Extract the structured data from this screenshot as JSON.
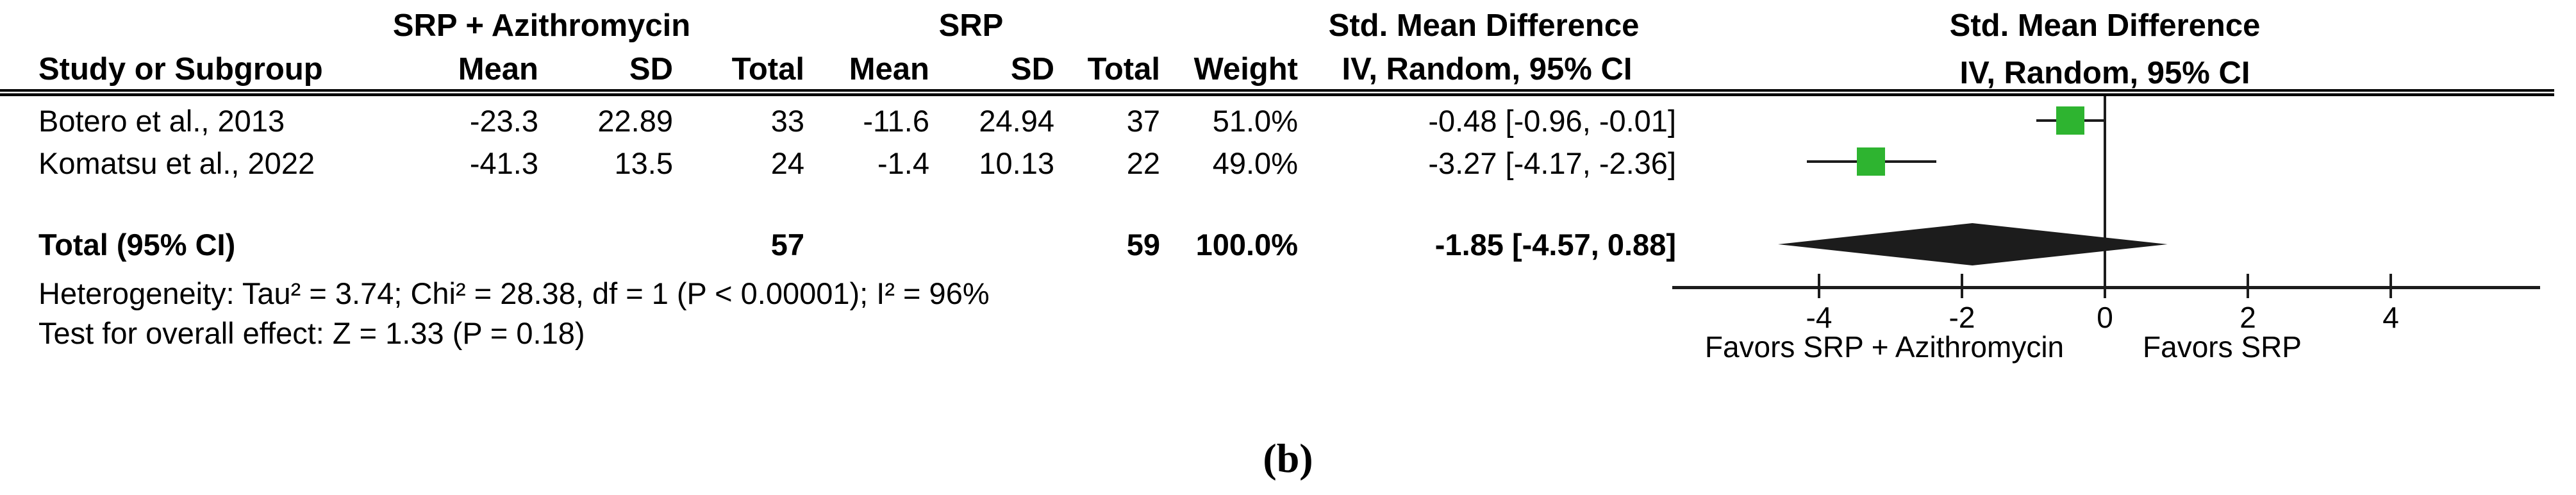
{
  "panel_label": "(b)",
  "colors": {
    "marker_green": "#2eb430",
    "line_black": "#1c1c1c"
  },
  "table": {
    "group_headers": {
      "experimental": "SRP + Azithromycin",
      "control": "SRP",
      "effect": "Std. Mean Difference",
      "plot": "Std. Mean Difference"
    },
    "columns": {
      "study": "Study or Subgroup",
      "mean1": "Mean",
      "sd1": "SD",
      "total1": "Total",
      "mean2": "Mean",
      "sd2": "SD",
      "total2": "Total",
      "weight": "Weight",
      "ci": "IV, Random, 95% CI"
    },
    "plot_subheader": "IV, Random, 95% CI",
    "rows": [
      {
        "study": "Botero et al., 2013",
        "mean1": "-23.3",
        "sd1": "22.89",
        "total1": "33",
        "mean2": "-11.6",
        "sd2": "24.94",
        "total2": "37",
        "weight": "51.0%",
        "ci": "-0.48 [-0.96, -0.01]"
      },
      {
        "study": "Komatsu et al., 2022",
        "mean1": "-41.3",
        "sd1": "13.5",
        "total1": "24",
        "mean2": "-1.4",
        "sd2": "10.13",
        "total2": "22",
        "weight": "49.0%",
        "ci": "-3.27 [-4.17, -2.36]"
      }
    ],
    "total": {
      "label": "Total (95% CI)",
      "total1": "57",
      "total2": "59",
      "weight": "100.0%",
      "ci": "-1.85 [-4.57, 0.88]"
    },
    "heterogeneity": "Heterogeneity: Tau² = 3.74; Chi² = 28.38, df = 1 (P < 0.00001); I² = 96%",
    "overall_effect": "Test for overall effect: Z = 1.33 (P = 0.18)"
  },
  "chart_data": {
    "type": "forest",
    "effect_measure": "Std. Mean Difference",
    "model": "IV, Random, 95% CI",
    "studies": [
      {
        "label": "Botero et al., 2013",
        "smd": -0.48,
        "ci_low": -0.96,
        "ci_high": -0.01,
        "weight_pct": 51.0,
        "experimental": {
          "mean": -23.3,
          "sd": 22.89,
          "n": 33
        },
        "control": {
          "mean": -11.6,
          "sd": 24.94,
          "n": 37
        }
      },
      {
        "label": "Komatsu et al., 2022",
        "smd": -3.27,
        "ci_low": -4.17,
        "ci_high": -2.36,
        "weight_pct": 49.0,
        "experimental": {
          "mean": -41.3,
          "sd": 13.5,
          "n": 24
        },
        "control": {
          "mean": -1.4,
          "sd": 10.13,
          "n": 22
        }
      }
    ],
    "total": {
      "smd": -1.85,
      "ci_low": -4.57,
      "ci_high": 0.88,
      "n_experimental": 57,
      "n_control": 59,
      "weight_pct": 100.0
    },
    "axis": {
      "ticks": [
        -4,
        -2,
        0,
        2,
        4
      ],
      "xlim": [
        -6,
        6
      ]
    },
    "favors_left": "Favors SRP + Azithromycin",
    "favors_right": "Favors SRP",
    "heterogeneity": {
      "tau2": 3.74,
      "chi2": 28.38,
      "df": 1,
      "p": "< 0.00001",
      "i2_pct": 96
    },
    "overall_effect": {
      "z": 1.33,
      "p": 0.18
    }
  }
}
